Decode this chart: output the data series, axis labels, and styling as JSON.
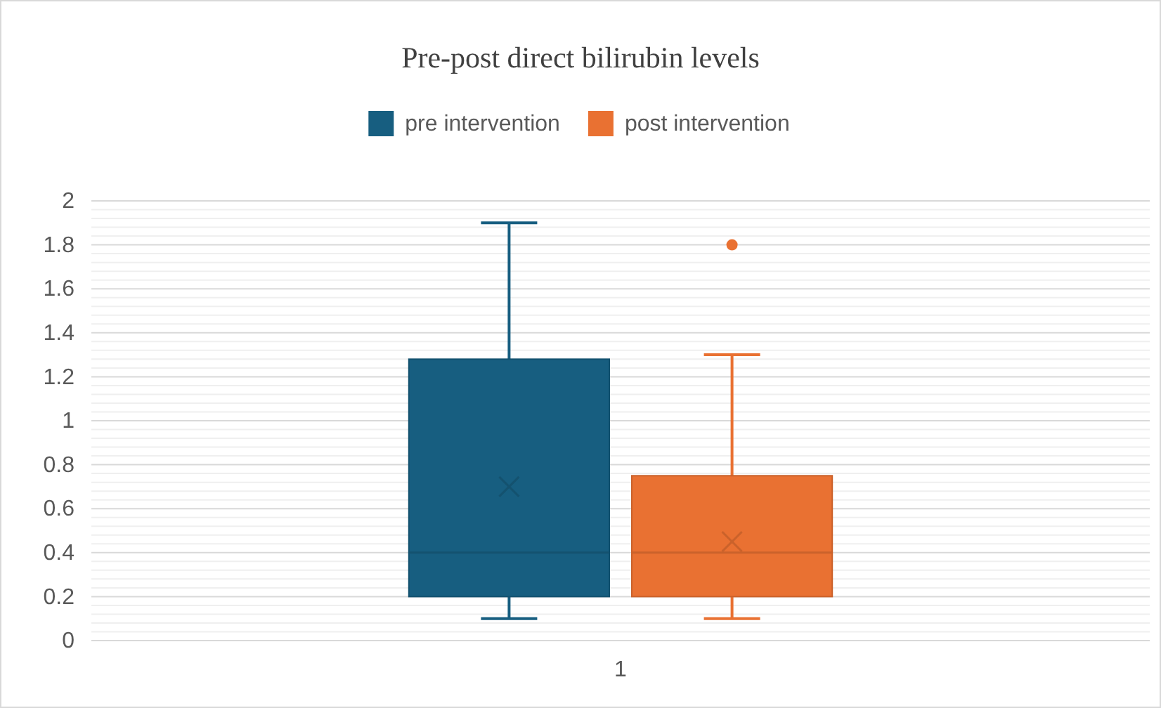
{
  "chart_data": {
    "type": "box",
    "title": "Pre-post direct bilirubin levels",
    "categories": [
      "1"
    ],
    "series": [
      {
        "name": "pre intervention",
        "color": "#175e80",
        "boxes": [
          {
            "low": 0.1,
            "q1": 0.2,
            "median": 0.4,
            "q3": 1.28,
            "high": 1.9,
            "mean": 0.7
          }
        ]
      },
      {
        "name": "post intervention",
        "color": "#e97132",
        "boxes": [
          {
            "low": 0.1,
            "q1": 0.2,
            "median": 0.4,
            "q3": 0.75,
            "high": 1.3,
            "mean": 0.45,
            "outliers": [
              1.8
            ]
          }
        ]
      }
    ],
    "ylim": [
      0,
      2
    ],
    "yticks": [
      0,
      0.2,
      0.4,
      0.6,
      0.8,
      1,
      1.2,
      1.4,
      1.6,
      1.8,
      2
    ],
    "grid": "y",
    "legend": "top"
  }
}
